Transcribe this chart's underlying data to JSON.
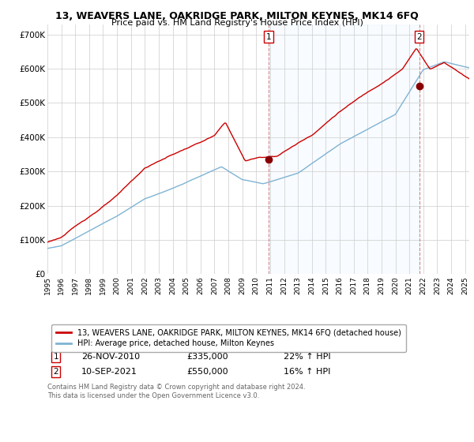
{
  "title": "13, WEAVERS LANE, OAKRIDGE PARK, MILTON KEYNES, MK14 6FQ",
  "subtitle": "Price paid vs. HM Land Registry's House Price Index (HPI)",
  "ylabel_ticks": [
    "£0",
    "£100K",
    "£200K",
    "£300K",
    "£400K",
    "£500K",
    "£600K",
    "£700K"
  ],
  "ytick_values": [
    0,
    100000,
    200000,
    300000,
    400000,
    500000,
    600000,
    700000
  ],
  "ylim": [
    0,
    730000
  ],
  "xlim_start": 1995.0,
  "xlim_end": 2025.3,
  "sale1_x": 2010.9,
  "sale1_y": 335000,
  "sale2_x": 2021.7,
  "sale2_y": 550000,
  "legend_line1": "13, WEAVERS LANE, OAKRIDGE PARK, MILTON KEYNES, MK14 6FQ (detached house)",
  "legend_line2": "HPI: Average price, detached house, Milton Keynes",
  "annotation1_label": "1",
  "annotation1_date": "26-NOV-2010",
  "annotation1_price": "£335,000",
  "annotation1_hpi": "22% ↑ HPI",
  "annotation2_label": "2",
  "annotation2_date": "10-SEP-2021",
  "annotation2_price": "£550,000",
  "annotation2_hpi": "16% ↑ HPI",
  "footer": "Contains HM Land Registry data © Crown copyright and database right 2024.\nThis data is licensed under the Open Government Licence v3.0.",
  "line_color_red": "#cc0000",
  "line_color_blue": "#7fb3d3",
  "shade_color": "#ddeeff",
  "background_color": "#ffffff",
  "grid_color": "#cccccc",
  "title_fontsize": 9,
  "subtitle_fontsize": 8
}
